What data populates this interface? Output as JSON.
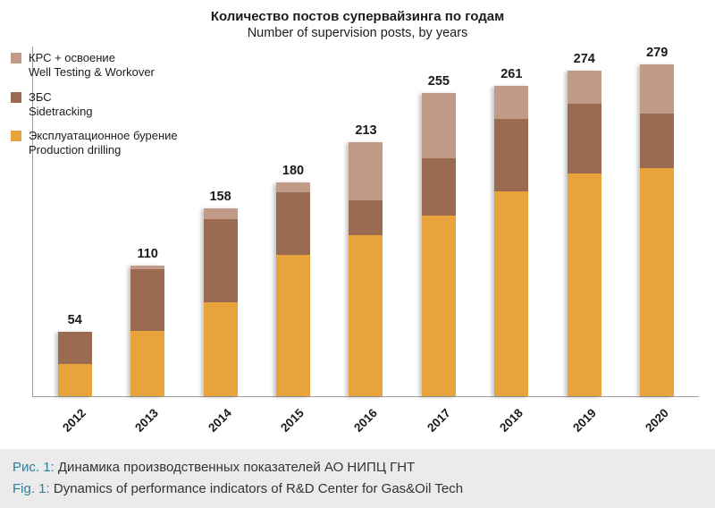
{
  "chart_data": {
    "type": "bar",
    "stacked": true,
    "title": "Количество постов супервайзинга по годам",
    "subtitle": "Number of supervision posts, by years",
    "categories": [
      "2012",
      "2013",
      "2014",
      "2015",
      "2016",
      "2017",
      "2018",
      "2019",
      "2020"
    ],
    "totals": [
      54,
      110,
      158,
      180,
      213,
      255,
      261,
      274,
      279
    ],
    "series": [
      {
        "name_ru": "Эксплуатационное бурение",
        "name_en": "Production drilling",
        "color": "#E8A33C",
        "values": [
          27,
          55,
          79,
          119,
          135,
          152,
          172,
          187,
          192
        ]
      },
      {
        "name_ru": "ЗБС",
        "name_en": "Sidetracking",
        "color": "#9A6A51",
        "values": [
          27,
          52,
          70,
          53,
          29,
          48,
          61,
          59,
          46
        ]
      },
      {
        "name_ru": "КРС + освоение",
        "name_en": "Well Testing & Workover",
        "color": "#C29B88",
        "values": [
          0,
          3,
          9,
          8,
          49,
          55,
          28,
          28,
          41
        ]
      }
    ],
    "legend": [
      {
        "label_ru": "КРС + освоение",
        "label_en": "Well Testing & Workover",
        "color": "#C29B88"
      },
      {
        "label_ru": "ЗБС",
        "label_en": "Sidetracking",
        "color": "#9A6A51"
      },
      {
        "label_ru": "Эксплуатационное бурение",
        "label_en": "Production drilling",
        "color": "#E8A33C"
      }
    ],
    "ylim": [
      0,
      290
    ],
    "grid": false,
    "legend_position": "top-left"
  },
  "caption": {
    "line1_label": "Рис. 1:",
    "line1_text": " Динамика производственных показателей АО НИПЦ ГНТ",
    "line2_label": "Fig. 1:",
    "line2_text": " Dynamics of performance indicators of R&D Center for Gas&Oil Tech"
  }
}
